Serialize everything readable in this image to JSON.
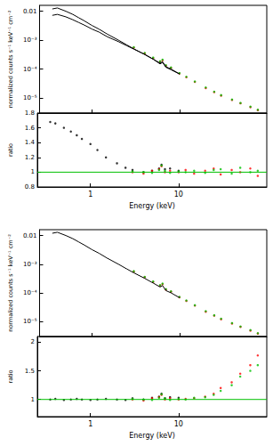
{
  "chart_data": [
    {
      "type": "line",
      "log": true,
      "tick_labels": "y",
      "grid": false,
      "y_label": "normalized counts s⁻¹ keV⁻¹ cm⁻²",
      "xlim": [
        0.25,
        100
      ],
      "xticks": [
        1,
        10
      ],
      "ylim": [
        3e-06,
        0.016
      ],
      "yticks": [
        0.01,
        {
          "value": 0.001,
          "label": "10⁻³"
        },
        {
          "value": 0.0001,
          "label": "10⁻⁴"
        },
        {
          "value": 1e-05,
          "label": "10⁻⁵"
        }
      ],
      "series": [
        {
          "type": "line",
          "color": "#000000",
          "line_style": "solid",
          "x": [
            0.35,
            0.4,
            0.5,
            0.6,
            0.7,
            0.8,
            1,
            1.2,
            1.5,
            2,
            2.5,
            3,
            4,
            5,
            6,
            6.4,
            7,
            8,
            10
          ],
          "values": [
            0.012,
            0.013,
            0.01,
            0.0078,
            0.006,
            0.0048,
            0.0032,
            0.0024,
            0.0016,
            0.001,
            0.00068,
            0.0005,
            0.00032,
            0.00022,
            0.00016,
            0.00018,
            0.00012,
            0.0001,
            6.8e-05
          ]
        },
        {
          "type": "line",
          "color": "#000000",
          "line_style": "solid",
          "x": [
            0.35,
            0.4,
            0.5,
            0.6,
            0.7,
            0.8,
            1,
            1.2,
            1.5,
            2,
            2.5,
            3,
            4,
            5,
            6,
            6.4,
            7,
            8,
            10
          ],
          "values": [
            0.0072,
            0.0078,
            0.0064,
            0.0051,
            0.0041,
            0.0034,
            0.0024,
            0.0019,
            0.0013,
            0.00089,
            0.00064,
            0.00049,
            0.00032,
            0.00022,
            0.00015,
            0.00017,
            0.000115,
            9.5e-05,
            6.7e-05
          ]
        },
        {
          "type": "scatter",
          "color": "#ff0000",
          "marker": "circle",
          "x": [
            3,
            4,
            5,
            6,
            6.4,
            7,
            8,
            10,
            12,
            15,
            20,
            25,
            30,
            40,
            50,
            65,
            79
          ],
          "values": [
            0.00055,
            0.00035,
            0.00024,
            0.00018,
            0.0002,
            0.00013,
            0.00011,
            7e-05,
            5.2e-05,
            3.6e-05,
            2.2e-05,
            1.6e-05,
            1.2e-05,
            8.5e-06,
            6.5e-06,
            4.8e-06,
            3.8e-06
          ]
        },
        {
          "type": "scatter",
          "color": "#00c000",
          "marker": "circle",
          "x": [
            3,
            4,
            5,
            6,
            6.4,
            7,
            8,
            10,
            12,
            15,
            20,
            25,
            30,
            40,
            50,
            65,
            79
          ],
          "values": [
            0.00057,
            0.00036,
            0.00025,
            0.000185,
            0.00021,
            0.000135,
            0.000113,
            7.2e-05,
            5.4e-05,
            3.7e-05,
            2.3e-05,
            1.65e-05,
            1.25e-05,
            8.8e-06,
            6.7e-06,
            5e-06,
            3.9e-06
          ]
        }
      ]
    },
    {
      "type": "line",
      "log": "x",
      "grid": false,
      "x_label": "Energy (keV)",
      "y_label": "ratio",
      "xlim": [
        0.25,
        100
      ],
      "xticks": [
        1,
        10
      ],
      "ylim": [
        0.8,
        1.8
      ],
      "yticks": [
        0.8,
        1,
        1.2,
        1.4,
        1.6,
        1.8
      ],
      "series": [
        {
          "type": "line",
          "color": "#00c000",
          "line_style": "solid",
          "x": [
            0.25,
            100
          ],
          "values": [
            1,
            1
          ]
        },
        {
          "type": "scatter",
          "color": "#000000",
          "marker": "circle",
          "x": [
            0.35,
            0.4,
            0.5,
            0.6,
            0.7,
            0.8,
            1,
            1.2,
            1.5,
            2,
            2.5,
            3,
            4,
            5,
            6,
            6.4,
            7,
            8,
            10
          ],
          "values": [
            1.68,
            1.66,
            1.6,
            1.55,
            1.5,
            1.45,
            1.38,
            1.3,
            1.2,
            1.12,
            1.06,
            1.03,
            1.0,
            1.02,
            1.05,
            1.1,
            1.04,
            1.05,
            1.02
          ]
        },
        {
          "type": "scatter",
          "color": "#ff0000",
          "marker": "circle",
          "x": [
            3,
            4,
            5,
            6,
            6.4,
            7,
            8,
            10,
            12,
            15,
            20,
            25,
            30,
            40,
            50,
            65,
            79
          ],
          "values": [
            1.0,
            0.98,
            1.02,
            1.04,
            1.08,
            1.0,
            1.02,
            1.0,
            1.03,
            0.98,
            1.02,
            1.05,
            0.97,
            1.03,
            1.0,
            1.05,
            0.95
          ]
        },
        {
          "type": "scatter",
          "color": "#00c000",
          "marker": "circle",
          "x": [
            3,
            4,
            5,
            6,
            6.4,
            7,
            8,
            10,
            12,
            15,
            20,
            25,
            30,
            40,
            50,
            65,
            79
          ],
          "values": [
            1.01,
            1.0,
            0.99,
            1.03,
            1.09,
            1.02,
            0.99,
            1.01,
            1.0,
            1.02,
            0.99,
            1.03,
            1.04,
            0.98,
            1.06,
            1.0,
            1.02
          ]
        }
      ]
    },
    {
      "type": "line",
      "log": true,
      "tick_labels": "y",
      "grid": false,
      "y_label": "normalized counts s⁻¹ keV⁻¹ cm⁻²",
      "xlim": [
        0.25,
        100
      ],
      "xticks": [
        1,
        10
      ],
      "ylim": [
        3e-06,
        0.016
      ],
      "yticks": [
        0.01,
        {
          "value": 0.001,
          "label": "10⁻³"
        },
        {
          "value": 0.0001,
          "label": "10⁻⁴"
        },
        {
          "value": 1e-05,
          "label": "10⁻⁵"
        }
      ],
      "series": [
        {
          "type": "line",
          "color": "#000000",
          "line_style": "solid",
          "x": [
            0.35,
            0.4,
            0.5,
            0.6,
            0.7,
            0.8,
            1,
            1.2,
            1.5,
            2,
            2.5,
            3,
            4,
            5,
            6,
            6.4,
            7,
            8,
            10
          ],
          "values": [
            0.012,
            0.013,
            0.01,
            0.0078,
            0.006,
            0.0048,
            0.0032,
            0.0024,
            0.0016,
            0.001,
            0.00068,
            0.0005,
            0.00032,
            0.00022,
            0.00016,
            0.00018,
            0.00012,
            0.0001,
            6.8e-05
          ]
        },
        {
          "type": "scatter",
          "color": "#ff0000",
          "marker": "circle",
          "x": [
            3,
            4,
            5,
            6,
            6.4,
            7,
            8,
            10,
            12,
            15,
            20,
            25,
            30,
            40,
            50,
            65,
            79
          ],
          "values": [
            0.00055,
            0.00035,
            0.00024,
            0.00018,
            0.0002,
            0.00013,
            0.00011,
            7e-05,
            5.2e-05,
            3.6e-05,
            2.2e-05,
            1.6e-05,
            1.2e-05,
            8.5e-06,
            6.5e-06,
            4.8e-06,
            3.8e-06
          ]
        },
        {
          "type": "scatter",
          "color": "#00c000",
          "marker": "circle",
          "x": [
            3,
            4,
            5,
            6,
            6.4,
            7,
            8,
            10,
            12,
            15,
            20,
            25,
            30,
            40,
            50,
            65,
            79
          ],
          "values": [
            0.00057,
            0.00036,
            0.00025,
            0.000185,
            0.00021,
            0.000135,
            0.000113,
            7.2e-05,
            5.4e-05,
            3.7e-05,
            2.3e-05,
            1.65e-05,
            1.25e-05,
            8.8e-06,
            6.7e-06,
            5e-06,
            3.9e-06
          ]
        }
      ]
    },
    {
      "type": "line",
      "log": "x",
      "grid": false,
      "x_label": "Energy (keV)",
      "y_label": "ratio",
      "xlim": [
        0.25,
        100
      ],
      "xticks": [
        1,
        10
      ],
      "ylim": [
        0.7,
        2.1
      ],
      "yticks": [
        1,
        1.5,
        2
      ],
      "series": [
        {
          "type": "line",
          "color": "#00c000",
          "line_style": "solid",
          "x": [
            0.25,
            100
          ],
          "values": [
            1,
            1
          ]
        },
        {
          "type": "scatter",
          "color": "#000000",
          "marker": "circle",
          "x": [
            0.35,
            0.4,
            0.5,
            0.6,
            0.7,
            0.8,
            1,
            1.2,
            1.5,
            2,
            2.5,
            3,
            4,
            5,
            6,
            6.4,
            7,
            8,
            10
          ],
          "values": [
            1.0,
            1.01,
            0.99,
            1.0,
            1.01,
            1.0,
            0.99,
            1.0,
            1.01,
            1.0,
            0.99,
            1.02,
            1.0,
            1.03,
            1.05,
            1.1,
            1.02,
            1.04,
            1.03
          ]
        },
        {
          "type": "scatter",
          "color": "#ff0000",
          "marker": "circle",
          "x": [
            3,
            4,
            5,
            6,
            6.4,
            7,
            8,
            10,
            12,
            15,
            20,
            25,
            30,
            40,
            50,
            65,
            79
          ],
          "values": [
            1.0,
            0.98,
            1.02,
            1.04,
            1.08,
            1.0,
            1.02,
            1.0,
            1.01,
            1.02,
            1.05,
            1.1,
            1.2,
            1.3,
            1.45,
            1.6,
            1.77
          ]
        },
        {
          "type": "scatter",
          "color": "#00c000",
          "marker": "circle",
          "x": [
            3,
            4,
            5,
            6,
            6.4,
            7,
            8,
            10,
            12,
            15,
            20,
            25,
            30,
            40,
            50,
            65,
            79
          ],
          "values": [
            1.01,
            1.0,
            0.99,
            1.03,
            1.09,
            1.02,
            0.99,
            1.01,
            1.0,
            1.03,
            1.04,
            1.08,
            1.15,
            1.25,
            1.4,
            1.5,
            1.6
          ]
        }
      ]
    }
  ]
}
